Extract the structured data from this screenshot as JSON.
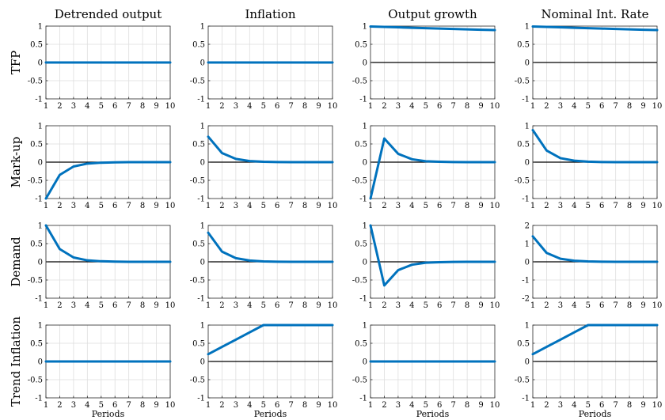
{
  "figure": {
    "column_titles": [
      "Detrended output",
      "Inflation",
      "Output growth",
      "Nominal Int. Rate"
    ],
    "row_labels": [
      "TFP",
      "Mark-up",
      "Demand",
      "Trend Inflation"
    ],
    "xlabel": "Periods",
    "line_color": "#0072bd"
  },
  "chart_data": [
    {
      "type": "line",
      "row": "TFP",
      "column": "Detrended output",
      "x": [
        1,
        2,
        3,
        4,
        5,
        6,
        7,
        8,
        9,
        10
      ],
      "y": [
        0,
        0,
        0,
        0,
        0,
        0,
        0,
        0,
        0,
        0
      ],
      "xlim": [
        1,
        10
      ],
      "ylim": [
        -1,
        1
      ],
      "yticks": [
        "-1",
        "-0.5",
        "0",
        "0.5",
        "1"
      ],
      "xticks": [
        "1",
        "2",
        "3",
        "4",
        "5",
        "6",
        "7",
        "8",
        "9",
        "10"
      ],
      "grid": true
    },
    {
      "type": "line",
      "row": "TFP",
      "column": "Inflation",
      "x": [
        1,
        2,
        3,
        4,
        5,
        6,
        7,
        8,
        9,
        10
      ],
      "y": [
        0,
        0,
        0,
        0,
        0,
        0,
        0,
        0,
        0,
        0
      ],
      "xlim": [
        1,
        10
      ],
      "ylim": [
        -1,
        1
      ],
      "yticks": [
        "-1",
        "-0.5",
        "0",
        "0.5",
        "1"
      ],
      "xticks": [
        "1",
        "2",
        "3",
        "4",
        "5",
        "6",
        "7",
        "8",
        "9",
        "10"
      ],
      "grid": true
    },
    {
      "type": "line",
      "row": "TFP",
      "column": "Output growth",
      "x": [
        1,
        2,
        3,
        4,
        5,
        6,
        7,
        8,
        9,
        10
      ],
      "y": [
        0.99,
        0.978,
        0.966,
        0.955,
        0.943,
        0.932,
        0.921,
        0.91,
        0.9,
        0.89
      ],
      "xlim": [
        1,
        10
      ],
      "ylim": [
        -1,
        1
      ],
      "yticks": [
        "-1",
        "-0.5",
        "0",
        "0.5",
        "1"
      ],
      "xticks": [
        "1",
        "2",
        "3",
        "4",
        "5",
        "6",
        "7",
        "8",
        "9",
        "10"
      ],
      "grid": true
    },
    {
      "type": "line",
      "row": "TFP",
      "column": "Nominal Int. Rate",
      "x": [
        1,
        2,
        3,
        4,
        5,
        6,
        7,
        8,
        9,
        10
      ],
      "y": [
        0.99,
        0.978,
        0.966,
        0.955,
        0.943,
        0.932,
        0.921,
        0.91,
        0.9,
        0.89
      ],
      "xlim": [
        1,
        10
      ],
      "ylim": [
        -1,
        1
      ],
      "yticks": [
        "-1",
        "-0.5",
        "0",
        "0.5",
        "1"
      ],
      "xticks": [
        "1",
        "2",
        "3",
        "4",
        "5",
        "6",
        "7",
        "8",
        "9",
        "10"
      ],
      "grid": true
    },
    {
      "type": "line",
      "row": "Mark-up",
      "column": "Detrended output",
      "x": [
        1,
        2,
        3,
        4,
        5,
        6,
        7,
        8,
        9,
        10
      ],
      "y": [
        -1,
        -0.35,
        -0.12,
        -0.04,
        -0.015,
        -0.005,
        0,
        0,
        0,
        0
      ],
      "xlim": [
        1,
        10
      ],
      "ylim": [
        -1,
        1
      ],
      "yticks": [
        "-1",
        "-0.5",
        "0",
        "0.5",
        "1"
      ],
      "xticks": [
        "1",
        "2",
        "3",
        "4",
        "5",
        "6",
        "7",
        "8",
        "9",
        "10"
      ],
      "grid": true
    },
    {
      "type": "line",
      "row": "Mark-up",
      "column": "Inflation",
      "x": [
        1,
        2,
        3,
        4,
        5,
        6,
        7,
        8,
        9,
        10
      ],
      "y": [
        0.7,
        0.25,
        0.09,
        0.03,
        0.01,
        0.003,
        0,
        0,
        0,
        0
      ],
      "xlim": [
        1,
        10
      ],
      "ylim": [
        -1,
        1
      ],
      "yticks": [
        "-1",
        "-0.5",
        "0",
        "0.5",
        "1"
      ],
      "xticks": [
        "1",
        "2",
        "3",
        "4",
        "5",
        "6",
        "7",
        "8",
        "9",
        "10"
      ],
      "grid": true
    },
    {
      "type": "line",
      "row": "Mark-up",
      "column": "Output growth",
      "x": [
        1,
        2,
        3,
        4,
        5,
        6,
        7,
        8,
        9,
        10
      ],
      "y": [
        -1,
        0.65,
        0.23,
        0.08,
        0.025,
        0.01,
        0.003,
        0,
        0,
        0
      ],
      "xlim": [
        1,
        10
      ],
      "ylim": [
        -1,
        1
      ],
      "yticks": [
        "-1",
        "-0.5",
        "0",
        "0.5",
        "1"
      ],
      "xticks": [
        "1",
        "2",
        "3",
        "4",
        "5",
        "6",
        "7",
        "8",
        "9",
        "10"
      ],
      "grid": true
    },
    {
      "type": "line",
      "row": "Mark-up",
      "column": "Nominal Int. Rate",
      "x": [
        1,
        2,
        3,
        4,
        5,
        6,
        7,
        8,
        9,
        10
      ],
      "y": [
        0.88,
        0.32,
        0.11,
        0.04,
        0.013,
        0.004,
        0,
        0,
        0,
        0
      ],
      "xlim": [
        1,
        10
      ],
      "ylim": [
        -1,
        1
      ],
      "yticks": [
        "-1",
        "-0.5",
        "0",
        "0.5",
        "1"
      ],
      "xticks": [
        "1",
        "2",
        "3",
        "4",
        "5",
        "6",
        "7",
        "8",
        "9",
        "10"
      ],
      "grid": true
    },
    {
      "type": "line",
      "row": "Demand",
      "column": "Detrended output",
      "x": [
        1,
        2,
        3,
        4,
        5,
        6,
        7,
        8,
        9,
        10
      ],
      "y": [
        1,
        0.35,
        0.12,
        0.04,
        0.015,
        0.005,
        0,
        0,
        0,
        0
      ],
      "xlim": [
        1,
        10
      ],
      "ylim": [
        -1,
        1
      ],
      "yticks": [
        "-1",
        "-0.5",
        "0",
        "0.5",
        "1"
      ],
      "xticks": [
        "1",
        "2",
        "3",
        "4",
        "5",
        "6",
        "7",
        "8",
        "9",
        "10"
      ],
      "grid": true
    },
    {
      "type": "line",
      "row": "Demand",
      "column": "Inflation",
      "x": [
        1,
        2,
        3,
        4,
        5,
        6,
        7,
        8,
        9,
        10
      ],
      "y": [
        0.8,
        0.28,
        0.1,
        0.035,
        0.012,
        0.004,
        0,
        0,
        0,
        0
      ],
      "xlim": [
        1,
        10
      ],
      "ylim": [
        -1,
        1
      ],
      "yticks": [
        "-1",
        "-0.5",
        "0",
        "0.5",
        "1"
      ],
      "xticks": [
        "1",
        "2",
        "3",
        "4",
        "5",
        "6",
        "7",
        "8",
        "9",
        "10"
      ],
      "grid": true
    },
    {
      "type": "line",
      "row": "Demand",
      "column": "Output growth",
      "x": [
        1,
        2,
        3,
        4,
        5,
        6,
        7,
        8,
        9,
        10
      ],
      "y": [
        1,
        -0.65,
        -0.23,
        -0.08,
        -0.025,
        -0.01,
        -0.003,
        0,
        0,
        0
      ],
      "xlim": [
        1,
        10
      ],
      "ylim": [
        -1,
        1
      ],
      "yticks": [
        "-1",
        "-0.5",
        "0",
        "0.5",
        "1"
      ],
      "xticks": [
        "1",
        "2",
        "3",
        "4",
        "5",
        "6",
        "7",
        "8",
        "9",
        "10"
      ],
      "grid": true
    },
    {
      "type": "line",
      "row": "Demand",
      "column": "Nominal Int. Rate",
      "x": [
        1,
        2,
        3,
        4,
        5,
        6,
        7,
        8,
        9,
        10
      ],
      "y": [
        1.4,
        0.49,
        0.17,
        0.06,
        0.02,
        0.007,
        0,
        0,
        0,
        0
      ],
      "xlim": [
        1,
        10
      ],
      "ylim": [
        -2,
        2
      ],
      "yticks": [
        "-2",
        "-1",
        "0",
        "1",
        "2"
      ],
      "xticks": [
        "1",
        "2",
        "3",
        "4",
        "5",
        "6",
        "7",
        "8",
        "9",
        "10"
      ],
      "grid": true
    },
    {
      "type": "line",
      "row": "Trend Inflation",
      "column": "Detrended output",
      "x": [
        1,
        2,
        3,
        4,
        5,
        6,
        7,
        8,
        9,
        10
      ],
      "y": [
        0,
        0,
        0,
        0,
        0,
        0,
        0,
        0,
        0,
        0
      ],
      "xlim": [
        1,
        10
      ],
      "ylim": [
        -1,
        1
      ],
      "yticks": [
        "-1",
        "-0.5",
        "0",
        "0.5",
        "1"
      ],
      "xticks": [
        "1",
        "2",
        "3",
        "4",
        "5",
        "6",
        "7",
        "8",
        "9",
        "10"
      ],
      "grid": true
    },
    {
      "type": "line",
      "row": "Trend Inflation",
      "column": "Inflation",
      "x": [
        1,
        2,
        3,
        4,
        5,
        6,
        7,
        8,
        9,
        10
      ],
      "y": [
        0.2,
        0.4,
        0.6,
        0.8,
        1,
        1,
        1,
        1,
        1,
        1
      ],
      "xlim": [
        1,
        10
      ],
      "ylim": [
        -1,
        1
      ],
      "yticks": [
        "-1",
        "-0.5",
        "0",
        "0.5",
        "1"
      ],
      "xticks": [
        "1",
        "2",
        "3",
        "4",
        "5",
        "6",
        "7",
        "8",
        "9",
        "10"
      ],
      "grid": true
    },
    {
      "type": "line",
      "row": "Trend Inflation",
      "column": "Output growth",
      "x": [
        1,
        2,
        3,
        4,
        5,
        6,
        7,
        8,
        9,
        10
      ],
      "y": [
        0,
        0,
        0,
        0,
        0,
        0,
        0,
        0,
        0,
        0
      ],
      "xlim": [
        1,
        10
      ],
      "ylim": [
        -1,
        1
      ],
      "yticks": [
        "-1",
        "-0.5",
        "0",
        "0.5",
        "1"
      ],
      "xticks": [
        "1",
        "2",
        "3",
        "4",
        "5",
        "6",
        "7",
        "8",
        "9",
        "10"
      ],
      "grid": true
    },
    {
      "type": "line",
      "row": "Trend Inflation",
      "column": "Nominal Int. Rate",
      "x": [
        1,
        2,
        3,
        4,
        5,
        6,
        7,
        8,
        9,
        10
      ],
      "y": [
        0.2,
        0.4,
        0.6,
        0.8,
        1,
        1,
        1,
        1,
        1,
        1
      ],
      "xlim": [
        1,
        10
      ],
      "ylim": [
        -1,
        1
      ],
      "yticks": [
        "-1",
        "-0.5",
        "0",
        "0.5",
        "1"
      ],
      "xticks": [
        "1",
        "2",
        "3",
        "4",
        "5",
        "6",
        "7",
        "8",
        "9",
        "10"
      ],
      "grid": true
    }
  ]
}
